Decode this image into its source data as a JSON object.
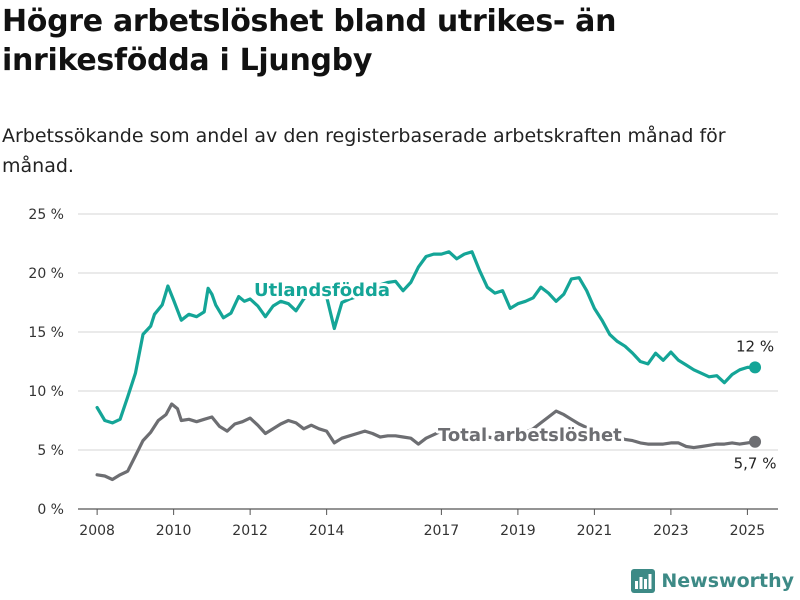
{
  "title": "Högre arbetslöshet bland utrikes- än inrikesfödda i Ljungby",
  "subtitle": "Arbetssökande som andel av den registerbaserade arbetskraften månad för månad.",
  "brand": {
    "name": "Newsworthy",
    "icon": "bar-chart-logo-icon",
    "color": "#3d8a86"
  },
  "chart_data": {
    "type": "line",
    "ylim": [
      0,
      25
    ],
    "yticks": [
      0,
      5,
      10,
      15,
      20,
      25
    ],
    "ytick_labels": [
      "0 %",
      "5 %",
      "10 %",
      "15 %",
      "20 %",
      "25 %"
    ],
    "xlim": [
      2007.5,
      2025.8
    ],
    "xticks": [
      2008,
      2010,
      2012,
      2014,
      2017,
      2019,
      2021,
      2023,
      2025
    ],
    "xtick_labels": [
      "2008",
      "2010",
      "2012",
      "2014",
      "2017",
      "2019",
      "2021",
      "2023",
      "2025"
    ],
    "grid": "horizontal",
    "series": [
      {
        "name": "Utlandsfödda",
        "color": "#14a597",
        "end_label": "12 %",
        "x": [
          2008.0,
          2008.2,
          2008.4,
          2008.6,
          2008.8,
          2009.0,
          2009.2,
          2009.4,
          2009.5,
          2009.7,
          2009.85,
          2010.0,
          2010.2,
          2010.4,
          2010.6,
          2010.8,
          2010.9,
          2011.0,
          2011.1,
          2011.3,
          2011.5,
          2011.7,
          2011.85,
          2012.0,
          2012.2,
          2012.4,
          2012.6,
          2012.8,
          2013.0,
          2013.2,
          2013.4,
          2013.6,
          2013.8,
          2014.0,
          2014.2,
          2014.4,
          2014.6,
          2014.8,
          2015.0,
          2015.2,
          2015.4,
          2015.6,
          2015.8,
          2016.0,
          2016.2,
          2016.4,
          2016.6,
          2016.8,
          2017.0,
          2017.2,
          2017.4,
          2017.6,
          2017.8,
          2018.0,
          2018.2,
          2018.4,
          2018.6,
          2018.8,
          2019.0,
          2019.2,
          2019.4,
          2019.6,
          2019.8,
          2020.0,
          2020.2,
          2020.4,
          2020.6,
          2020.8,
          2021.0,
          2021.2,
          2021.4,
          2021.6,
          2021.8,
          2022.0,
          2022.2,
          2022.4,
          2022.6,
          2022.8,
          2023.0,
          2023.2,
          2023.4,
          2023.6,
          2023.8,
          2024.0,
          2024.2,
          2024.4,
          2024.6,
          2024.8,
          2025.0,
          2025.2
        ],
        "y": [
          8.6,
          7.5,
          7.3,
          7.6,
          9.5,
          11.5,
          14.8,
          15.5,
          16.5,
          17.3,
          18.9,
          17.7,
          16.0,
          16.5,
          16.3,
          16.7,
          18.7,
          18.2,
          17.3,
          16.2,
          16.6,
          18.0,
          17.6,
          17.8,
          17.2,
          16.3,
          17.2,
          17.6,
          17.4,
          16.8,
          17.8,
          18.5,
          18.2,
          18.0,
          15.3,
          17.5,
          17.8,
          18.0,
          18.3,
          18.6,
          19.0,
          19.2,
          19.3,
          18.5,
          19.2,
          20.5,
          21.4,
          21.6,
          21.6,
          21.8,
          21.2,
          21.6,
          21.8,
          20.2,
          18.8,
          18.3,
          18.5,
          17.0,
          17.4,
          17.6,
          17.9,
          18.8,
          18.3,
          17.6,
          18.2,
          19.5,
          19.6,
          18.5,
          17.0,
          16.0,
          14.8,
          14.2,
          13.8,
          13.2,
          12.5,
          12.3,
          13.2,
          12.6,
          13.3,
          12.6,
          12.2,
          11.8,
          11.5,
          11.2,
          11.3,
          10.7,
          11.4,
          11.8,
          12.0,
          12.0
        ]
      },
      {
        "name": "Total arbetslöshet",
        "color": "#6d6e72",
        "end_label": "5,7 %",
        "x": [
          2008.0,
          2008.2,
          2008.4,
          2008.6,
          2008.8,
          2009.0,
          2009.2,
          2009.4,
          2009.6,
          2009.8,
          2009.95,
          2010.1,
          2010.2,
          2010.4,
          2010.6,
          2010.8,
          2011.0,
          2011.2,
          2011.4,
          2011.6,
          2011.8,
          2012.0,
          2012.2,
          2012.4,
          2012.6,
          2012.8,
          2013.0,
          2013.2,
          2013.4,
          2013.6,
          2013.8,
          2014.0,
          2014.2,
          2014.4,
          2014.6,
          2014.8,
          2015.0,
          2015.2,
          2015.4,
          2015.6,
          2015.8,
          2016.0,
          2016.2,
          2016.4,
          2016.6,
          2016.8,
          2017.0,
          2017.2,
          2017.4,
          2017.6,
          2017.8,
          2018.0,
          2018.2,
          2018.4,
          2018.6,
          2018.8,
          2019.0,
          2019.2,
          2019.4,
          2019.6,
          2019.8,
          2020.0,
          2020.2,
          2020.4,
          2020.6,
          2020.8,
          2021.0,
          2021.2,
          2021.4,
          2021.6,
          2021.8,
          2022.0,
          2022.2,
          2022.4,
          2022.6,
          2022.8,
          2023.0,
          2023.2,
          2023.4,
          2023.6,
          2023.8,
          2024.0,
          2024.2,
          2024.4,
          2024.6,
          2024.8,
          2025.0,
          2025.2
        ],
        "y": [
          2.9,
          2.8,
          2.5,
          2.9,
          3.2,
          4.5,
          5.8,
          6.5,
          7.5,
          8.0,
          8.9,
          8.5,
          7.5,
          7.6,
          7.4,
          7.6,
          7.8,
          7.0,
          6.6,
          7.2,
          7.4,
          7.7,
          7.1,
          6.4,
          6.8,
          7.2,
          7.5,
          7.3,
          6.8,
          7.1,
          6.8,
          6.6,
          5.6,
          6.0,
          6.2,
          6.4,
          6.6,
          6.4,
          6.1,
          6.2,
          6.2,
          6.1,
          6.0,
          5.5,
          6.0,
          6.3,
          6.6,
          6.3,
          6.5,
          6.6,
          6.4,
          6.2,
          6.1,
          6.0,
          6.2,
          6.3,
          6.4,
          6.5,
          6.8,
          7.3,
          7.8,
          8.3,
          8.0,
          7.6,
          7.2,
          6.9,
          6.5,
          6.4,
          6.4,
          6.1,
          5.9,
          5.8,
          5.6,
          5.5,
          5.5,
          5.5,
          5.6,
          5.6,
          5.3,
          5.2,
          5.3,
          5.4,
          5.5,
          5.5,
          5.6,
          5.5,
          5.6,
          5.7
        ]
      }
    ]
  }
}
